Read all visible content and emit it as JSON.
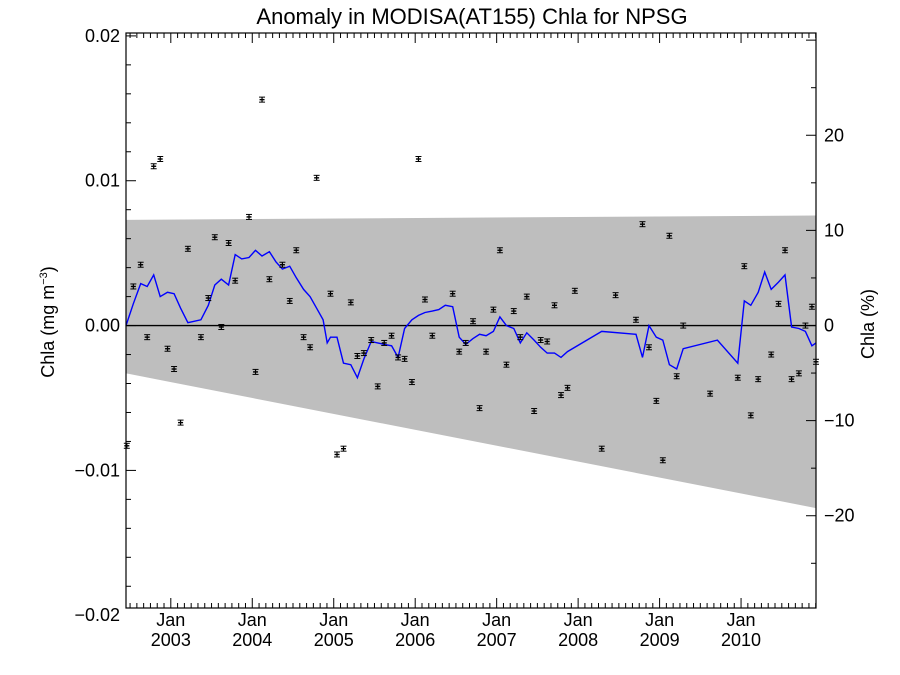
{
  "chart_data": {
    "type": "scatter",
    "title": "Anomaly in MODISA(AT155) Chla for NPSG",
    "ylabel_left": "Chla (mg m",
    "ylabel_left_sup": "−3",
    "ylabel_left_close": ")",
    "ylabel_right": "Chla (%)",
    "x_range": [
      2002.45,
      2010.92
    ],
    "y_range": [
      -0.0195,
      0.0202
    ],
    "y_right_range": [
      -29.7,
      30.75
    ],
    "x_ticks": [
      {
        "value": 2003.0,
        "month": "Jan",
        "year": "2003"
      },
      {
        "value": 2004.0,
        "month": "Jan",
        "year": "2004"
      },
      {
        "value": 2005.0,
        "month": "Jan",
        "year": "2005"
      },
      {
        "value": 2006.0,
        "month": "Jan",
        "year": "2006"
      },
      {
        "value": 2007.0,
        "month": "Jan",
        "year": "2007"
      },
      {
        "value": 2008.0,
        "month": "Jan",
        "year": "2008"
      },
      {
        "value": 2009.0,
        "month": "Jan",
        "year": "2009"
      },
      {
        "value": 2010.0,
        "month": "Jan",
        "year": "2010"
      }
    ],
    "y_ticks_left": [
      {
        "value": 0.02,
        "label": "0.02"
      },
      {
        "value": 0.01,
        "label": "0.01"
      },
      {
        "value": 0.0,
        "label": "0.00"
      },
      {
        "value": -0.01,
        "label": "−0.01"
      },
      {
        "value": -0.02,
        "label": "−0.02"
      }
    ],
    "y_ticks_right": [
      {
        "value": 20,
        "label": "20"
      },
      {
        "value": 10,
        "label": "10"
      },
      {
        "value": 0,
        "label": "0"
      },
      {
        "value": -10,
        "label": "−10"
      },
      {
        "value": -20,
        "label": "−20"
      }
    ],
    "uncertainty_band": {
      "color": "#bebebe",
      "start": {
        "x": 2002.45,
        "upper": 0.0073,
        "lower": -0.0033
      },
      "end": {
        "x": 2010.92,
        "upper": 0.0076,
        "lower": -0.0126
      }
    },
    "points": [
      {
        "x": 2002.46,
        "y": -0.0083
      },
      {
        "x": 2002.54,
        "y": 0.0027
      },
      {
        "x": 2002.63,
        "y": 0.0042
      },
      {
        "x": 2002.71,
        "y": -0.0008
      },
      {
        "x": 2002.79,
        "y": 0.011
      },
      {
        "x": 2002.87,
        "y": 0.0115
      },
      {
        "x": 2002.96,
        "y": -0.0016
      },
      {
        "x": 2003.04,
        "y": -0.003
      },
      {
        "x": 2003.12,
        "y": -0.0067
      },
      {
        "x": 2003.21,
        "y": 0.0053
      },
      {
        "x": 2003.37,
        "y": -0.0008
      },
      {
        "x": 2003.46,
        "y": 0.0019
      },
      {
        "x": 2003.54,
        "y": 0.0061
      },
      {
        "x": 2003.62,
        "y": -0.0001
      },
      {
        "x": 2003.71,
        "y": 0.0057
      },
      {
        "x": 2003.79,
        "y": 0.0031
      },
      {
        "x": 2003.96,
        "y": 0.0075
      },
      {
        "x": 2004.04,
        "y": -0.0032
      },
      {
        "x": 2004.12,
        "y": 0.0156
      },
      {
        "x": 2004.21,
        "y": 0.0032
      },
      {
        "x": 2004.37,
        "y": 0.0042
      },
      {
        "x": 2004.46,
        "y": 0.0017
      },
      {
        "x": 2004.54,
        "y": 0.0052
      },
      {
        "x": 2004.63,
        "y": -0.0008
      },
      {
        "x": 2004.71,
        "y": -0.0015
      },
      {
        "x": 2004.79,
        "y": 0.0102
      },
      {
        "x": 2004.96,
        "y": 0.0022
      },
      {
        "x": 2005.04,
        "y": -0.0089
      },
      {
        "x": 2005.12,
        "y": -0.0085
      },
      {
        "x": 2005.21,
        "y": 0.0016
      },
      {
        "x": 2005.29,
        "y": -0.0021
      },
      {
        "x": 2005.37,
        "y": -0.0019
      },
      {
        "x": 2005.46,
        "y": -0.001
      },
      {
        "x": 2005.54,
        "y": -0.0042
      },
      {
        "x": 2005.62,
        "y": -0.0012
      },
      {
        "x": 2005.71,
        "y": -0.0007
      },
      {
        "x": 2005.79,
        "y": -0.0022
      },
      {
        "x": 2005.87,
        "y": -0.0023
      },
      {
        "x": 2005.96,
        "y": -0.0039
      },
      {
        "x": 2006.04,
        "y": 0.0115
      },
      {
        "x": 2006.12,
        "y": 0.0018
      },
      {
        "x": 2006.21,
        "y": -0.0007
      },
      {
        "x": 2006.46,
        "y": 0.0022
      },
      {
        "x": 2006.54,
        "y": -0.0018
      },
      {
        "x": 2006.62,
        "y": -0.0012
      },
      {
        "x": 2006.71,
        "y": 0.0003
      },
      {
        "x": 2006.79,
        "y": -0.0057
      },
      {
        "x": 2006.87,
        "y": -0.0018
      },
      {
        "x": 2006.96,
        "y": 0.0011
      },
      {
        "x": 2007.04,
        "y": 0.0052
      },
      {
        "x": 2007.12,
        "y": -0.0027
      },
      {
        "x": 2007.21,
        "y": 0.001
      },
      {
        "x": 2007.29,
        "y": -0.0008
      },
      {
        "x": 2007.37,
        "y": 0.002
      },
      {
        "x": 2007.46,
        "y": -0.0059
      },
      {
        "x": 2007.54,
        "y": -0.001
      },
      {
        "x": 2007.62,
        "y": -0.0011
      },
      {
        "x": 2007.71,
        "y": 0.0014
      },
      {
        "x": 2007.79,
        "y": -0.0048
      },
      {
        "x": 2007.87,
        "y": -0.0043
      },
      {
        "x": 2007.96,
        "y": 0.0024
      },
      {
        "x": 2008.29,
        "y": -0.0085
      },
      {
        "x": 2008.46,
        "y": 0.0021
      },
      {
        "x": 2008.71,
        "y": 0.0004
      },
      {
        "x": 2008.79,
        "y": 0.007
      },
      {
        "x": 2008.87,
        "y": -0.0015
      },
      {
        "x": 2008.96,
        "y": -0.0052
      },
      {
        "x": 2009.04,
        "y": -0.0093
      },
      {
        "x": 2009.12,
        "y": 0.0062
      },
      {
        "x": 2009.21,
        "y": -0.0035
      },
      {
        "x": 2009.29,
        "y": 0.0
      },
      {
        "x": 2009.62,
        "y": -0.0047
      },
      {
        "x": 2009.96,
        "y": -0.0036
      },
      {
        "x": 2010.04,
        "y": 0.0041
      },
      {
        "x": 2010.12,
        "y": -0.0062
      },
      {
        "x": 2010.21,
        "y": -0.0037
      },
      {
        "x": 2010.37,
        "y": -0.002
      },
      {
        "x": 2010.46,
        "y": 0.0015
      },
      {
        "x": 2010.54,
        "y": 0.0052
      },
      {
        "x": 2010.62,
        "y": -0.0037
      },
      {
        "x": 2010.71,
        "y": -0.0033
      },
      {
        "x": 2010.79,
        "y": 0.0
      },
      {
        "x": 2010.87,
        "y": 0.0013
      },
      {
        "x": 2010.92,
        "y": -0.0025
      }
    ],
    "line": {
      "color": "#0000ff",
      "x": [
        2002.45,
        2002.54,
        2002.63,
        2002.71,
        2002.79,
        2002.87,
        2002.96,
        2003.04,
        2003.12,
        2003.21,
        2003.37,
        2003.46,
        2003.54,
        2003.62,
        2003.71,
        2003.79,
        2003.87,
        2003.96,
        2004.04,
        2004.12,
        2004.21,
        2004.29,
        2004.37,
        2004.46,
        2004.54,
        2004.63,
        2004.71,
        2004.79,
        2004.87,
        2004.92,
        2004.96,
        2005.04,
        2005.12,
        2005.21,
        2005.29,
        2005.37,
        2005.46,
        2005.54,
        2005.62,
        2005.71,
        2005.79,
        2005.87,
        2005.96,
        2006.04,
        2006.12,
        2006.21,
        2006.29,
        2006.37,
        2006.46,
        2006.54,
        2006.62,
        2006.71,
        2006.79,
        2006.87,
        2006.96,
        2007.04,
        2007.12,
        2007.21,
        2007.29,
        2007.37,
        2007.46,
        2007.54,
        2007.62,
        2007.71,
        2007.79,
        2007.87,
        2008.29,
        2008.71,
        2008.79,
        2008.87,
        2008.96,
        2009.04,
        2009.12,
        2009.21,
        2009.29,
        2009.71,
        2009.96,
        2010.04,
        2010.12,
        2010.21,
        2010.29,
        2010.37,
        2010.46,
        2010.54,
        2010.62,
        2010.71,
        2010.79,
        2010.87,
        2010.92
      ],
      "y": [
        0.0,
        0.0015,
        0.0029,
        0.0027,
        0.0035,
        0.002,
        0.0023,
        0.0022,
        0.0012,
        0.0002,
        0.0004,
        0.0014,
        0.0028,
        0.0032,
        0.0028,
        0.0049,
        0.0046,
        0.0047,
        0.0052,
        0.0048,
        0.0051,
        0.0044,
        0.0039,
        0.0041,
        0.0033,
        0.0025,
        0.002,
        0.0012,
        0.0004,
        -0.0012,
        -0.0008,
        -0.0008,
        -0.0026,
        -0.0027,
        -0.0036,
        -0.0023,
        -0.0011,
        -0.0012,
        -0.0013,
        -0.0014,
        -0.0022,
        -0.0002,
        0.0004,
        0.0007,
        0.0009,
        0.001,
        0.0011,
        0.0014,
        0.0013,
        -0.0008,
        -0.0013,
        -0.0009,
        -0.0006,
        -0.0007,
        -0.0004,
        0.0006,
        0.0,
        -0.0002,
        -0.0012,
        -0.0005,
        -0.001,
        -0.0015,
        -0.0019,
        -0.0019,
        -0.0022,
        -0.0018,
        -0.0004,
        -0.0006,
        -0.0022,
        0.0,
        -0.0008,
        -0.001,
        -0.0027,
        -0.003,
        -0.0016,
        -0.001,
        -0.0026,
        0.0017,
        0.0014,
        0.0023,
        0.0037,
        0.0025,
        0.003,
        0.0035,
        -0.0001,
        -0.0002,
        -0.0004,
        -0.0014,
        -0.0012
      ]
    }
  }
}
